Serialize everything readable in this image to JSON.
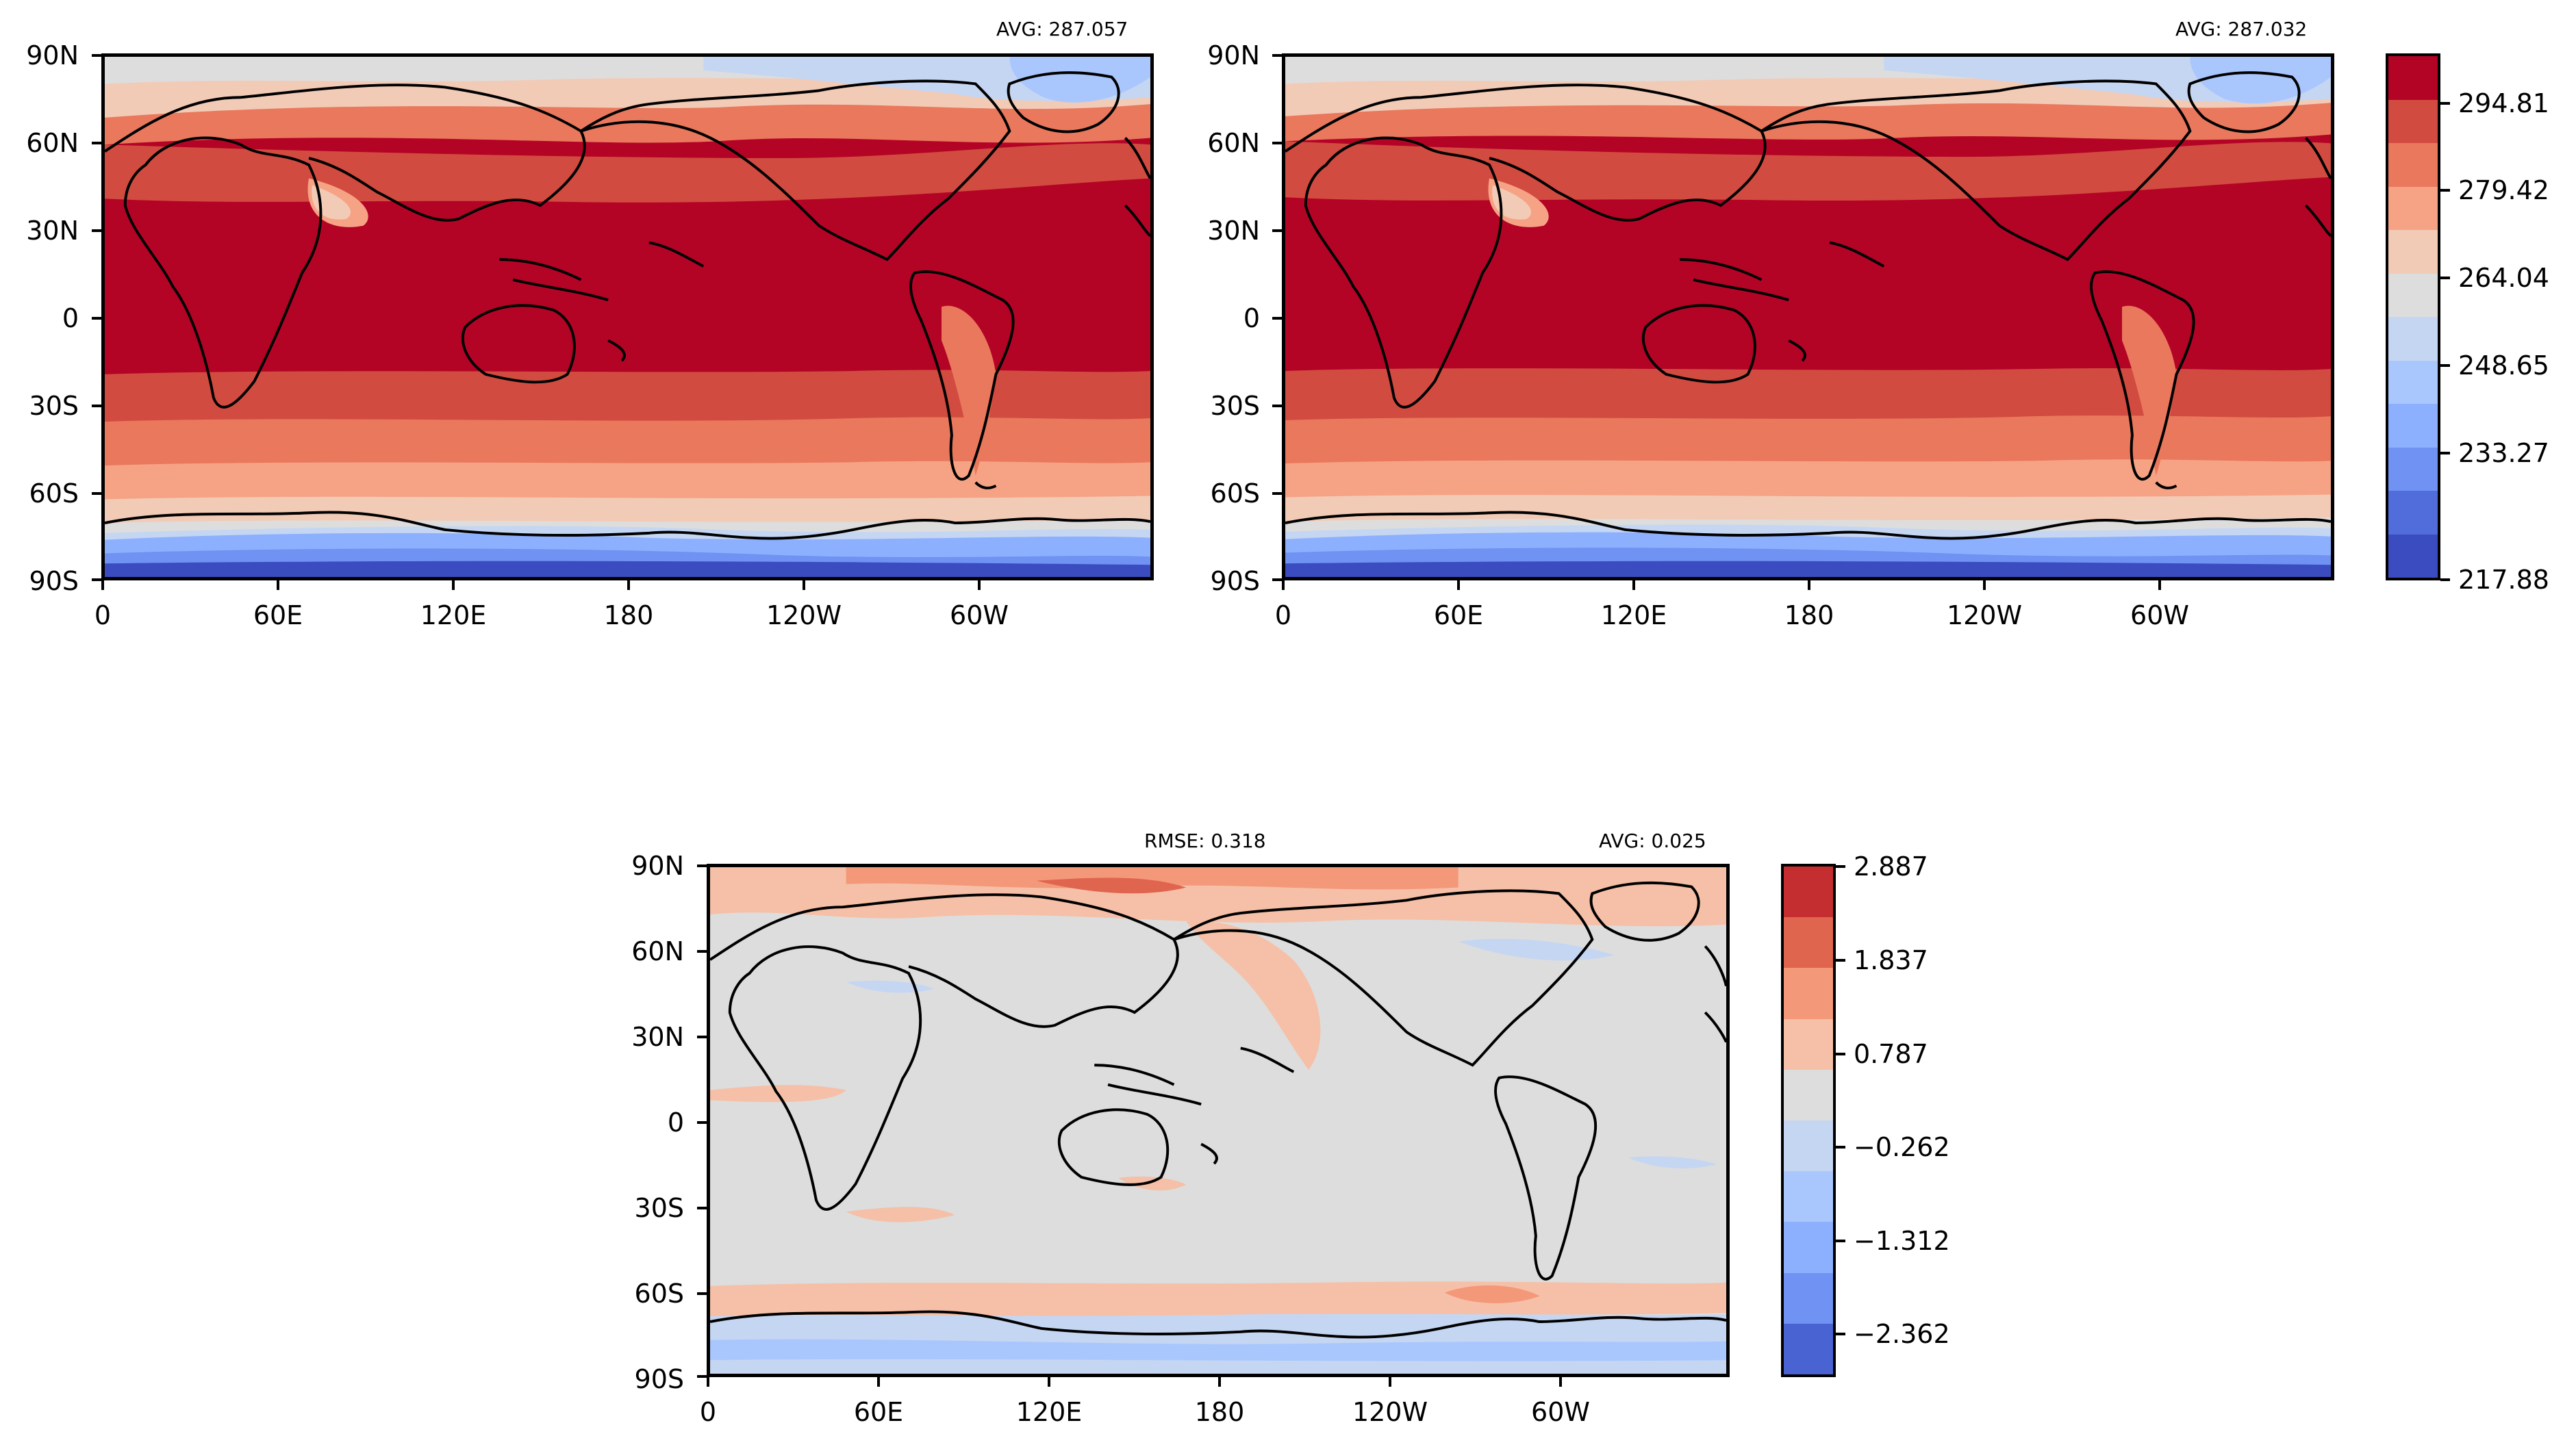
{
  "panels": {
    "top_left": {
      "avg_label": "AVG: 287.057"
    },
    "top_right": {
      "avg_label": "AVG: 287.032"
    },
    "bottom": {
      "rmse_label": "RMSE: 0.318",
      "avg_label": "AVG: 0.025"
    }
  },
  "axes": {
    "lat_ticks": [
      "90N",
      "60N",
      "30N",
      "0",
      "30S",
      "60S",
      "90S"
    ],
    "lon_ticks": [
      "0",
      "60E",
      "120E",
      "180",
      "120W",
      "60W"
    ]
  },
  "colorbars": {
    "temperature": {
      "labels": [
        "294.81",
        "279.42",
        "264.04",
        "248.65",
        "233.27",
        "217.88"
      ],
      "colors": [
        "#b40426",
        "#d24b40",
        "#e9785d",
        "#f6a385",
        "#f2cbb7",
        "#dddddd",
        "#c5d6f2",
        "#aac7fd",
        "#8db0fe",
        "#6f92f3",
        "#516ddb",
        "#3b4cc0"
      ]
    },
    "difference": {
      "labels": [
        "2.887",
        "1.837",
        "0.787",
        "−0.262",
        "−1.312",
        "−2.362"
      ],
      "colors": [
        "#c42e31",
        "#e0654f",
        "#f4987a",
        "#f5c0a7",
        "#dddddd",
        "#c5d6f2",
        "#aac7fd",
        "#8db0fe",
        "#6f92f3",
        "#4a63d3"
      ]
    }
  },
  "map_data": {
    "projection": "plate-carree",
    "central_longitude": 0,
    "lon_range": [
      0,
      360
    ],
    "lat_range": [
      -90,
      90
    ]
  }
}
